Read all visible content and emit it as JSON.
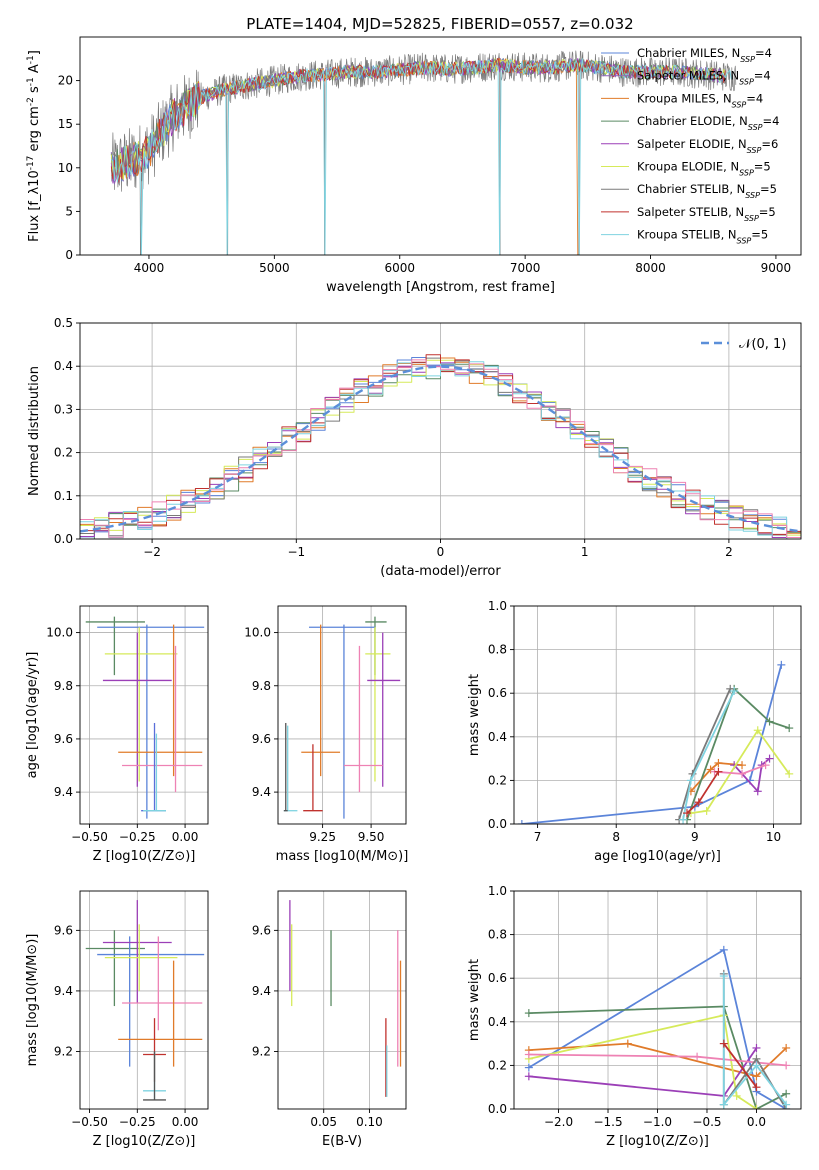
{
  "figure": {
    "title": "PLATE=1404, MJD=52825, FIBERID=0557, z=0.032",
    "colors": {
      "chabrier_miles": "#5b84d9",
      "salpeter_miles": "#8e62b8",
      "kroupa_miles": "#e07b2a",
      "chabrier_elodie": "#5a8a63",
      "salpeter_elodie": "#9b3fb7",
      "kroupa_elodie": "#d6ea5a",
      "chabrier_stelib": "#7a7a7a",
      "salpeter_stelib": "#c0322e",
      "kroupa_stelib": "#7fd3e0",
      "pink": "#ee82b4",
      "normal_curve": "#5b8fd9",
      "grid": "#b0b0b0"
    }
  },
  "chart_data": [
    {
      "id": "spectrum",
      "type": "line",
      "xlabel": "wavelength [Angstrom, rest frame]",
      "ylabel": "Flux [f_λ10^-17 erg cm^-2 s^-1 A^-1]",
      "xlim": [
        3450,
        9200
      ],
      "ylim": [
        0,
        25
      ],
      "xticks": [
        4000,
        5000,
        6000,
        7000,
        8000,
        9000
      ],
      "yticks": [
        0,
        5,
        10,
        15,
        20
      ],
      "grid": false,
      "legend_position": "top-right",
      "legend": [
        {
          "label": "Chabrier MILES, N_SSP=4",
          "color": "#5b84d9"
        },
        {
          "label": "Salpeter MILES, N_SSP=4",
          "color": "#8e62b8"
        },
        {
          "label": "Kroupa MILES, N_SSP=4",
          "color": "#e07b2a"
        },
        {
          "label": "Chabrier ELODIE, N_SSP=4",
          "color": "#5a8a63"
        },
        {
          "label": "Salpeter ELODIE, N_SSP=6",
          "color": "#9b3fb7"
        },
        {
          "label": "Kroupa ELODIE, N_SSP=5",
          "color": "#d6ea5a"
        },
        {
          "label": "Chabrier STELIB, N_SSP=5",
          "color": "#7a7a7a"
        },
        {
          "label": "Salpeter STELIB, N_SSP=5",
          "color": "#c0322e"
        },
        {
          "label": "Kroupa STELIB, N_SSP=5",
          "color": "#7fd3e0"
        }
      ],
      "continuum": {
        "x": [
          3700,
          3800,
          3900,
          4000,
          4100,
          4200,
          4300,
          4400,
          4500,
          4600,
          4800,
          5000,
          5200,
          5400,
          5600,
          5800,
          6000,
          6200,
          6400,
          6600,
          6800,
          7000,
          7200,
          7400,
          7600,
          7800,
          8000,
          8200,
          8400,
          8600
        ],
        "y": [
          10,
          10.5,
          11,
          12,
          14,
          16,
          17,
          18,
          18.5,
          19,
          19.5,
          20,
          20.5,
          20.7,
          21,
          21,
          21.2,
          21.5,
          21.3,
          21.5,
          21.8,
          21.5,
          21.5,
          21.8,
          21.5,
          21,
          21,
          21,
          20.8,
          20.5
        ]
      },
      "absorption_dips": [
        {
          "x": 3935,
          "y": 0
        },
        {
          "x": 4625,
          "y": 0
        },
        {
          "x": 5400,
          "y": 0
        },
        {
          "x": 6800,
          "y": 0
        },
        {
          "x": 7430,
          "y": 0
        }
      ]
    },
    {
      "id": "residual_histogram",
      "type": "bar",
      "xlabel": "(data-model)/error",
      "ylabel": "Normed distribution",
      "xlim": [
        -2.5,
        2.5
      ],
      "ylim": [
        0,
        0.5
      ],
      "xticks": [
        -2,
        -1,
        0,
        1,
        2
      ],
      "xtick_labels": [
        "−2",
        "−1",
        "0",
        "1",
        "2"
      ],
      "yticks": [
        0.0,
        0.1,
        0.2,
        0.3,
        0.4,
        0.5
      ],
      "ytick_labels": [
        "0.0",
        "0.1",
        "0.2",
        "0.3",
        "0.4",
        "0.5"
      ],
      "grid": true,
      "legend_position": "top-right",
      "legend": [
        {
          "label": "𝒩(0, 1)",
          "style": "dashed",
          "color": "#5b8fd9"
        }
      ],
      "bin_width": 0.1,
      "normal_curve": {
        "mu": 0,
        "sigma": 1
      }
    },
    {
      "id": "age_vs_Z",
      "type": "scatter",
      "xlabel": "Z [log10(Z/Z⊙)]",
      "ylabel": "age [log10(age/yr)]",
      "xlim": [
        -0.55,
        0.12
      ],
      "ylim": [
        9.28,
        10.1
      ],
      "xticks": [
        -0.5,
        -0.25,
        0.0
      ],
      "xtick_labels": [
        "−0.50",
        "−0.25",
        "0.00"
      ],
      "yticks": [
        9.4,
        9.6,
        9.8,
        10.0
      ],
      "ytick_labels": [
        "9.4",
        "9.6",
        "9.8",
        "10.0"
      ],
      "grid": true,
      "errorbars": [
        {
          "x": -0.37,
          "xlo": -0.52,
          "xhi": -0.21,
          "y": 10.04,
          "ylo": 9.84,
          "yhi": 10.06,
          "color": "#5a8a63"
        },
        {
          "x": -0.2,
          "xlo": -0.46,
          "xhi": 0.1,
          "y": 10.02,
          "ylo": 9.3,
          "yhi": 10.03,
          "color": "#5b84d9"
        },
        {
          "x": -0.24,
          "xlo": -0.42,
          "xhi": -0.04,
          "y": 9.92,
          "ylo": 9.44,
          "yhi": 10.02,
          "color": "#d6ea5a"
        },
        {
          "x": -0.25,
          "xlo": -0.43,
          "xhi": -0.07,
          "y": 9.82,
          "ylo": 9.42,
          "yhi": 10.0,
          "color": "#9b3fb7"
        },
        {
          "x": -0.06,
          "xlo": -0.35,
          "xhi": 0.09,
          "y": 9.55,
          "ylo": 9.46,
          "yhi": 10.03,
          "color": "#e07b2a"
        },
        {
          "x": -0.05,
          "xlo": -0.33,
          "xhi": 0.09,
          "y": 9.5,
          "ylo": 9.4,
          "yhi": 9.95,
          "color": "#ee82b4"
        },
        {
          "x": -0.16,
          "xlo": -0.23,
          "xhi": -0.1,
          "y": 9.33,
          "ylo": 9.33,
          "yhi": 9.66,
          "color": "#5a6fd9"
        },
        {
          "x": -0.15,
          "xlo": -0.22,
          "xhi": -0.1,
          "y": 9.33,
          "ylo": 9.33,
          "yhi": 9.62,
          "color": "#7fd3e0"
        }
      ]
    },
    {
      "id": "age_vs_mass",
      "type": "scatter",
      "xlabel": "mass [log10(M/M⊙)]",
      "ylabel": "",
      "xlim": [
        9.02,
        9.68
      ],
      "ylim": [
        9.28,
        10.1
      ],
      "xticks": [
        9.25,
        9.5
      ],
      "xtick_labels": [
        "9.25",
        "9.50"
      ],
      "yticks": [
        9.4,
        9.6,
        9.8,
        10.0
      ],
      "ytick_labels": [
        "9.4",
        "9.6",
        "9.8",
        "10.0"
      ],
      "grid": true,
      "errorbars": [
        {
          "x": 9.52,
          "xlo": 9.47,
          "xhi": 9.58,
          "y": 10.04,
          "ylo": 9.84,
          "yhi": 10.06,
          "color": "#5a8a63"
        },
        {
          "x": 9.36,
          "xlo": 9.18,
          "xhi": 9.52,
          "y": 10.02,
          "ylo": 9.3,
          "yhi": 10.03,
          "color": "#5b84d9"
        },
        {
          "x": 9.52,
          "xlo": 9.47,
          "xhi": 9.6,
          "y": 9.92,
          "ylo": 9.44,
          "yhi": 10.02,
          "color": "#d6ea5a"
        },
        {
          "x": 9.56,
          "xlo": 9.48,
          "xhi": 9.65,
          "y": 9.82,
          "ylo": 9.42,
          "yhi": 10.0,
          "color": "#9b3fb7"
        },
        {
          "x": 9.24,
          "xlo": 9.14,
          "xhi": 9.34,
          "y": 9.55,
          "ylo": 9.46,
          "yhi": 10.03,
          "color": "#e07b2a"
        },
        {
          "x": 9.44,
          "xlo": 9.36,
          "xhi": 9.56,
          "y": 9.5,
          "ylo": 9.4,
          "yhi": 9.95,
          "color": "#ee82b4"
        },
        {
          "x": 9.2,
          "xlo": 9.15,
          "xhi": 9.25,
          "y": 9.33,
          "ylo": 9.33,
          "yhi": 9.58,
          "color": "#c0322e"
        },
        {
          "x": 9.07,
          "xlo": 9.05,
          "xhi": 9.12,
          "y": 9.33,
          "ylo": 9.33,
          "yhi": 9.65,
          "color": "#7fd3e0"
        },
        {
          "x": 9.06,
          "xlo": 9.05,
          "xhi": 9.07,
          "y": 9.33,
          "ylo": 9.33,
          "yhi": 9.66,
          "color": "#555555"
        }
      ]
    },
    {
      "id": "massweight_vs_age",
      "type": "line",
      "xlabel": "age [log10(age/yr)]",
      "ylabel": "mass weight",
      "xlim": [
        6.7,
        10.35
      ],
      "ylim": [
        0,
        1
      ],
      "xticks": [
        7,
        8,
        9,
        10
      ],
      "xtick_labels": [
        "7",
        "8",
        "9",
        "10"
      ],
      "yticks": [
        0.0,
        0.2,
        0.4,
        0.6,
        0.8,
        1.0
      ],
      "ytick_labels": [
        "0.0",
        "0.2",
        "0.4",
        "0.6",
        "0.8",
        "1.0"
      ],
      "grid": true,
      "series": [
        {
          "color": "#5b84d9",
          "x": [
            6.8,
            9.0,
            9.7,
            10.1
          ],
          "y": [
            0.0,
            0.08,
            0.2,
            0.73
          ]
        },
        {
          "color": "#e07b2a",
          "x": [
            8.95,
            9.2,
            9.3,
            9.6
          ],
          "y": [
            0.15,
            0.25,
            0.28,
            0.27
          ]
        },
        {
          "color": "#5a8a63",
          "x": [
            8.9,
            9.5,
            9.95,
            10.2
          ],
          "y": [
            0.02,
            0.62,
            0.47,
            0.44
          ]
        },
        {
          "color": "#9b3fb7",
          "x": [
            9.5,
            9.8,
            9.85,
            9.95
          ],
          "y": [
            0.27,
            0.15,
            0.27,
            0.3
          ]
        },
        {
          "color": "#d6ea5a",
          "x": [
            8.95,
            9.15,
            9.8,
            10.2
          ],
          "y": [
            0.05,
            0.06,
            0.43,
            0.23
          ]
        },
        {
          "color": "#ee82b4",
          "x": [
            9.25,
            9.6,
            9.9
          ],
          "y": [
            0.24,
            0.23,
            0.27
          ]
        },
        {
          "color": "#7a7a7a",
          "x": [
            8.8,
            8.97,
            9.45
          ],
          "y": [
            0.02,
            0.23,
            0.62
          ]
        },
        {
          "color": "#7fd3e0",
          "x": [
            8.85,
            8.95,
            9.5
          ],
          "y": [
            0.02,
            0.2,
            0.61
          ]
        },
        {
          "color": "#c0322e",
          "x": [
            8.9,
            9.05,
            9.3
          ],
          "y": [
            0.05,
            0.1,
            0.24
          ]
        }
      ]
    },
    {
      "id": "mass_vs_Z",
      "type": "scatter",
      "xlabel": "Z [log10(Z/Z⊙)]",
      "ylabel": "mass [log10(M/M⊙)]",
      "xlim": [
        -0.55,
        0.12
      ],
      "ylim": [
        9.01,
        9.73
      ],
      "xticks": [
        -0.5,
        -0.25,
        0.0
      ],
      "xtick_labels": [
        "−0.50",
        "−0.25",
        "0.00"
      ],
      "yticks": [
        9.2,
        9.4,
        9.6
      ],
      "ytick_labels": [
        "9.2",
        "9.4",
        "9.6"
      ],
      "grid": true,
      "errorbars": [
        {
          "x": -0.37,
          "xlo": -0.52,
          "xhi": -0.21,
          "y": 9.54,
          "ylo": 9.35,
          "yhi": 9.6,
          "color": "#5a8a63"
        },
        {
          "x": -0.29,
          "xlo": -0.46,
          "xhi": 0.1,
          "y": 9.52,
          "ylo": 9.15,
          "yhi": 9.58,
          "color": "#5b84d9"
        },
        {
          "x": -0.25,
          "xlo": -0.43,
          "xhi": -0.07,
          "y": 9.56,
          "ylo": 9.36,
          "yhi": 9.7,
          "color": "#9b3fb7"
        },
        {
          "x": -0.24,
          "xlo": -0.42,
          "xhi": -0.04,
          "y": 9.51,
          "ylo": 9.4,
          "yhi": 9.62,
          "color": "#d6ea5a"
        },
        {
          "x": -0.14,
          "xlo": -0.33,
          "xhi": 0.09,
          "y": 9.36,
          "ylo": 9.27,
          "yhi": 9.58,
          "color": "#ee82b4"
        },
        {
          "x": -0.06,
          "xlo": -0.35,
          "xhi": 0.09,
          "y": 9.24,
          "ylo": 9.15,
          "yhi": 9.5,
          "color": "#e07b2a"
        },
        {
          "x": -0.16,
          "xlo": -0.22,
          "xhi": -0.1,
          "y": 9.19,
          "ylo": 9.1,
          "yhi": 9.31,
          "color": "#c0322e"
        },
        {
          "x": -0.16,
          "xlo": -0.22,
          "xhi": -0.1,
          "y": 9.07,
          "ylo": 9.04,
          "yhi": 9.2,
          "color": "#7fd3e0"
        },
        {
          "x": -0.16,
          "xlo": -0.22,
          "xhi": -0.1,
          "y": 9.04,
          "ylo": 9.04,
          "yhi": 9.2,
          "color": "#555555"
        }
      ]
    },
    {
      "id": "mass_vs_ebv",
      "type": "scatter",
      "xlabel": "E(B-V)",
      "ylabel": "",
      "xlim": [
        0.0,
        0.14
      ],
      "ylim": [
        9.01,
        9.73
      ],
      "xticks": [
        0.05,
        0.1
      ],
      "xtick_labels": [
        "0.05",
        "0.10"
      ],
      "yticks": [
        9.2,
        9.4,
        9.6
      ],
      "ytick_labels": [
        "9.2",
        "9.4",
        "9.6"
      ],
      "grid": true,
      "errorbars": [
        {
          "x": 0.013,
          "ylo": 9.4,
          "yhi": 9.7,
          "color": "#9b3fb7"
        },
        {
          "x": 0.015,
          "ylo": 9.35,
          "yhi": 9.62,
          "color": "#d6ea5a"
        },
        {
          "x": 0.058,
          "ylo": 9.35,
          "yhi": 9.6,
          "color": "#5a8a63"
        },
        {
          "x": 0.118,
          "ylo": 9.05,
          "yhi": 9.31,
          "color": "#c0322e"
        },
        {
          "x": 0.119,
          "ylo": 9.05,
          "yhi": 9.22,
          "color": "#7fd3e0"
        },
        {
          "x": 0.131,
          "ylo": 9.15,
          "yhi": 9.6,
          "color": "#ee82b4"
        },
        {
          "x": 0.134,
          "ylo": 9.15,
          "yhi": 9.5,
          "color": "#e07b2a"
        }
      ]
    },
    {
      "id": "massweight_vs_Z",
      "type": "line",
      "xlabel": "Z [log10(Z/Z⊙)]",
      "ylabel": "mass weight",
      "xlim": [
        -2.45,
        0.45
      ],
      "ylim": [
        0,
        1
      ],
      "xticks": [
        -2.0,
        -1.5,
        -1.0,
        -0.5,
        0.0
      ],
      "xtick_labels": [
        "−2.0",
        "−1.5",
        "−1.0",
        "−0.5",
        "0.0"
      ],
      "yticks": [
        0.0,
        0.2,
        0.4,
        0.6,
        0.8,
        1.0
      ],
      "ytick_labels": [
        "0.0",
        "0.2",
        "0.4",
        "0.6",
        "0.8",
        "1.0"
      ],
      "grid": true,
      "series": [
        {
          "color": "#5b84d9",
          "x": [
            -2.3,
            -0.33,
            0.0,
            0.3
          ],
          "y": [
            0.19,
            0.73,
            0.08,
            0.0
          ]
        },
        {
          "color": "#e07b2a",
          "x": [
            -2.3,
            -1.3,
            0.0,
            0.3
          ],
          "y": [
            0.27,
            0.3,
            0.15,
            0.28
          ]
        },
        {
          "color": "#5a8a63",
          "x": [
            -2.3,
            -0.33,
            0.0,
            0.3
          ],
          "y": [
            0.44,
            0.47,
            0.0,
            0.07
          ]
        },
        {
          "color": "#9b3fb7",
          "x": [
            -2.3,
            -0.33,
            0.0
          ],
          "y": [
            0.15,
            0.06,
            0.28
          ]
        },
        {
          "color": "#d6ea5a",
          "x": [
            -2.3,
            -0.33,
            -0.2,
            0.0
          ],
          "y": [
            0.23,
            0.43,
            0.06,
            0.0
          ]
        },
        {
          "color": "#ee82b4",
          "x": [
            -2.3,
            -0.6,
            0.3
          ],
          "y": [
            0.25,
            0.24,
            0.2
          ]
        },
        {
          "color": "#7a7a7a",
          "x": [
            -0.33,
            -0.33,
            0.0,
            0.3
          ],
          "y": [
            0.62,
            0.02,
            0.23,
            0.0
          ]
        },
        {
          "color": "#7fd3e0",
          "x": [
            -0.33,
            -0.33,
            0.0,
            0.3
          ],
          "y": [
            0.61,
            0.02,
            0.2,
            0.02
          ]
        },
        {
          "color": "#c0322e",
          "x": [
            -0.33,
            0.0
          ],
          "y": [
            0.3,
            0.1
          ]
        }
      ]
    }
  ]
}
